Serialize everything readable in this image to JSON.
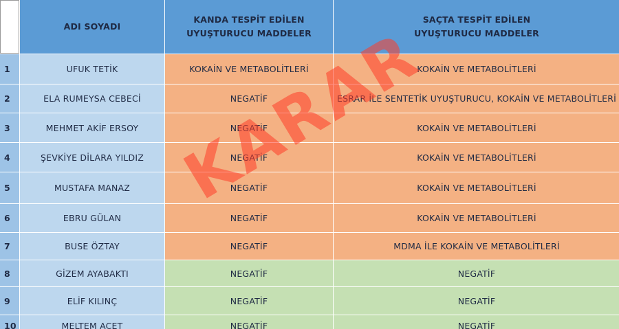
{
  "header": {
    "name": "ADI SOYADI",
    "blood": [
      "KANDA TESPİT EDİLEN",
      "UYUŞTURUCU MADDELER"
    ],
    "hair": [
      "SAÇTA TESPİT EDİLEN",
      "UYUŞTURUCU MADDELER"
    ]
  },
  "table": {
    "rows": [
      [
        1,
        "UFUK TETİK",
        "KOKAİN VE METABOLİTLERİ",
        "KOKAİN VE METABOLİTLERİ"
      ],
      [
        2,
        "ELA RUMEYSA CEBECİ",
        "NEGATİF",
        "ESRAR İLE SENTETİK UYUŞTURUCU, KOKAİN VE METABOLİTLERİ"
      ],
      [
        3,
        "MEHMET AKİF ERSOY",
        "NEGATİF",
        "KOKAİN VE METABOLİTLERİ"
      ],
      [
        4,
        "ŞEVKİYE DİLARA YILDIZ",
        "NEGATİF",
        "KOKAİN VE METABOLİTLERİ"
      ],
      [
        5,
        "MUSTAFA MANAZ",
        "NEGATİF",
        "KOKAİN VE METABOLİTLERİ"
      ],
      [
        6,
        "EBRU GÜLAN",
        "NEGATİF",
        "KOKAİN VE METABOLİTLERİ"
      ],
      [
        7,
        "BUSE ÖZTAY",
        "NEGATİF",
        "MDMA İLE KOKAİN VE METABOLİTLERİ"
      ],
      [
        8,
        "GİZEM AYABAKTI",
        "NEGATİF",
        "NEGATİF"
      ],
      [
        9,
        "ELİF KILINÇ",
        "NEGATİF",
        "NEGATİF"
      ],
      [
        10,
        "MELTEM ACET",
        "NEGATİF",
        "NEGATİF"
      ]
    ]
  },
  "watermark": "KARAR"
}
